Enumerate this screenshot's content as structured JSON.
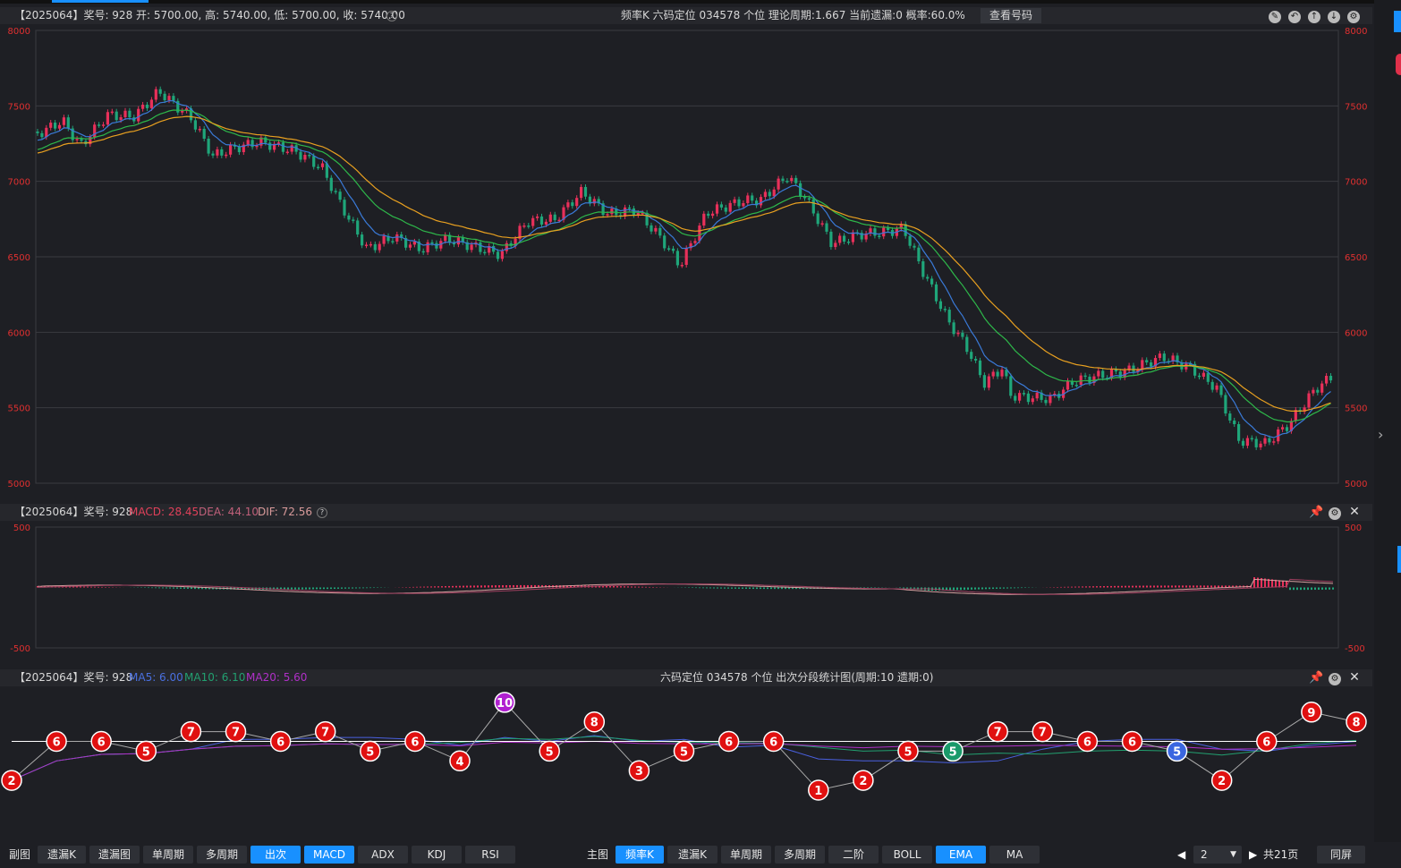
{
  "kline_header": {
    "info": "【2025064】奖号: 928  开: 5700.00, 高: 5740.00, 低: 5700.00, 收: 5740.00",
    "center": "频率K  六码定位  034578  个位  理论周期:1.667  当前遗漏:0  概率:60.0%",
    "btn": "查看号码"
  },
  "kline_axis": [
    "8000",
    "7500",
    "7000",
    "6500",
    "6000",
    "5500",
    "5000"
  ],
  "macd_header": {
    "prefix": "【2025064】奖号: 928 ",
    "macd": "MACD: 28.45",
    "dea": "DEA: 44.10",
    "dif": "DIF: 72.56"
  },
  "macd_axis": [
    "500",
    "-500"
  ],
  "stat_header": {
    "prefix": "【2025064】奖号: 928 ",
    "ma5": "MA5: 6.00",
    "ma10": "MA10: 6.10",
    "ma20": "MA20: 5.60",
    "center": "六码定位  034578    个位  出次分段统计图(周期:10  遗期:0)"
  },
  "stat_values": [
    2,
    6,
    6,
    5,
    7,
    7,
    6,
    7,
    5,
    6,
    4,
    10,
    5,
    8,
    3,
    5,
    6,
    6,
    1,
    2,
    5,
    5,
    7,
    7,
    6,
    6,
    5,
    2,
    6,
    9,
    8
  ],
  "stat_special": {
    "11": "#b020d0",
    "21": "#1a9a6a",
    "26": "#3a66e0"
  },
  "colors": {
    "up": "#e8305a",
    "down": "#1fa67a",
    "ema_short": "#3a7ad8",
    "ema_mid": "#2eb84a",
    "ema_long": "#e8a020",
    "ball": "#e01010"
  },
  "bottom_bar": {
    "left_label": "副图",
    "left_buttons": [
      "遗漏K",
      "遗漏图",
      "单周期",
      "多周期",
      "出次",
      "MACD",
      "ADX",
      "KDJ",
      "RSI"
    ],
    "main_label": "主图",
    "main_buttons": [
      "频率K",
      "遗漏K",
      "单周期",
      "多周期",
      "二阶",
      "BOLL",
      "EMA",
      "MA"
    ],
    "page_value": "2",
    "page_total": "共21页",
    "sync": "同屏"
  }
}
